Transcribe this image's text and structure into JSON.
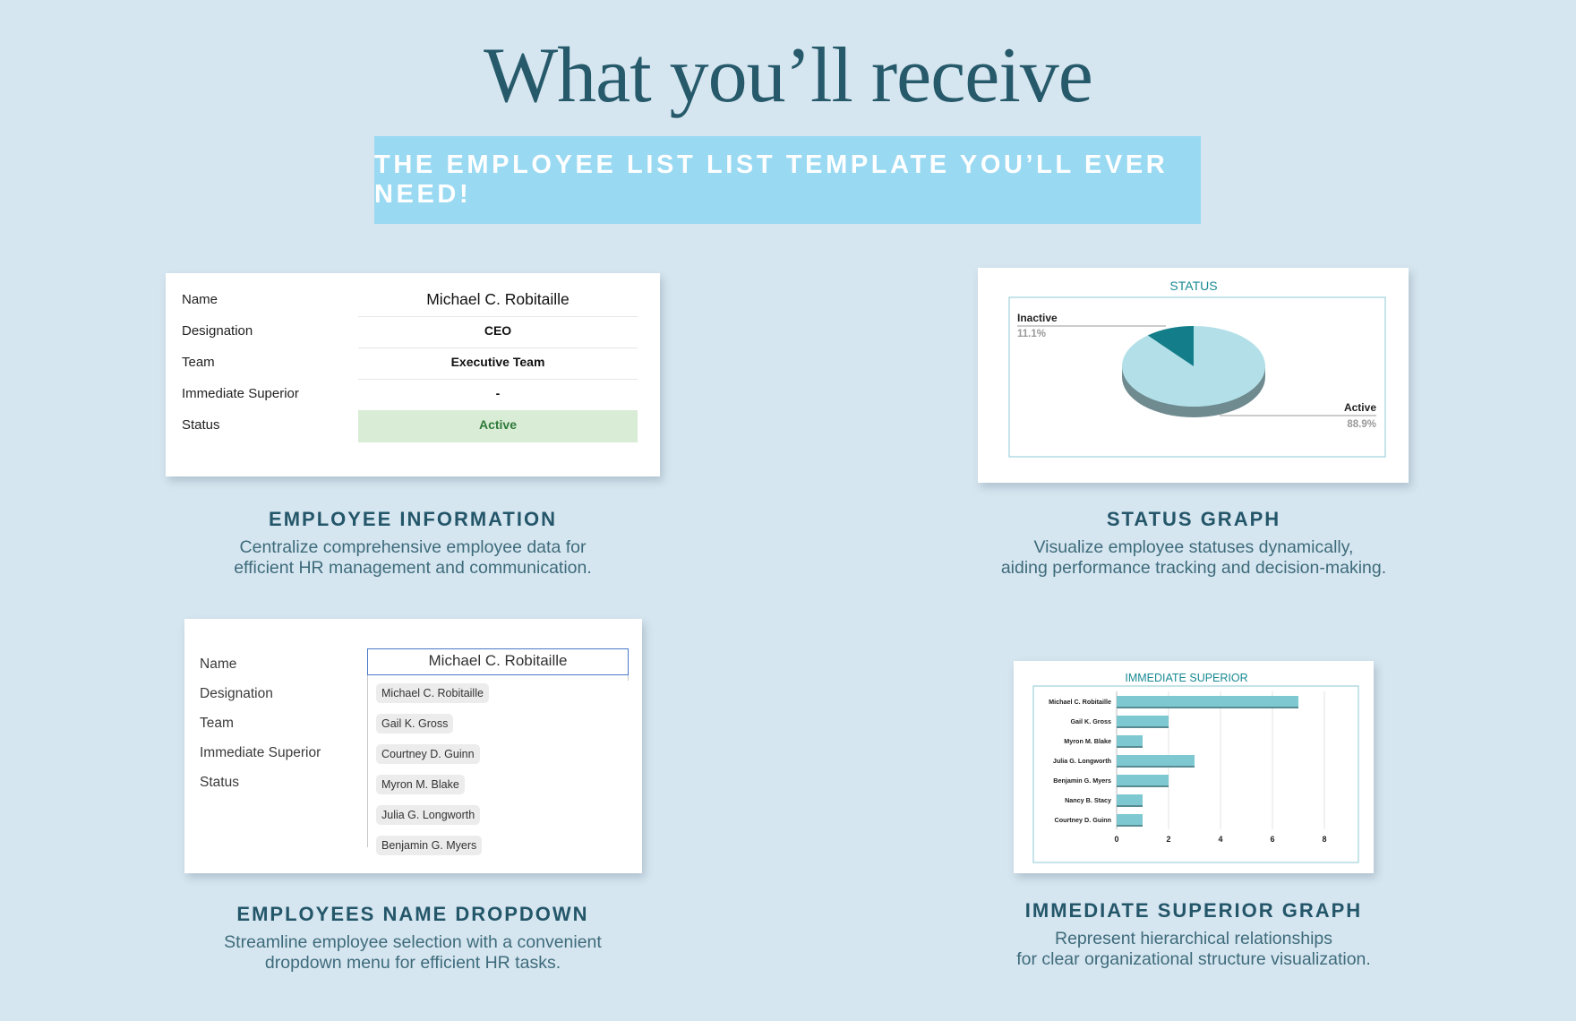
{
  "page": {
    "title": "What you’ll receive",
    "banner": "THE EMPLOYEE LIST LIST TEMPLATE YOU’LL EVER NEED!"
  },
  "employee_card": {
    "rows": [
      {
        "label": "Name",
        "value": "Michael C. Robitaille"
      },
      {
        "label": "Designation",
        "value": "CEO"
      },
      {
        "label": "Team",
        "value": "Executive Team"
      },
      {
        "label": "Immediate Superior",
        "value": "-"
      },
      {
        "label": "Status",
        "value": "Active"
      }
    ],
    "status_color": "#d9ecd6",
    "status_text_color": "#2f7a3a"
  },
  "sections": {
    "employee_info": {
      "title": "EMPLOYEE INFORMATION",
      "line1": "Centralize comprehensive employee data for",
      "line2": "efficient HR management and communication."
    },
    "status_graph": {
      "title": "STATUS GRAPH",
      "line1": "Visualize employee statuses dynamically,",
      "line2": "aiding performance tracking and decision-making."
    },
    "name_dropdown": {
      "title": "EMPLOYEES NAME DROPDOWN",
      "line1": "Streamline employee selection with a convenient",
      "line2": "dropdown menu for efficient HR tasks."
    },
    "superior_graph": {
      "title": "IMMEDIATE SUPERIOR GRAPH",
      "line1": "Represent hierarchical relationships",
      "line2": "for clear organizational structure visualization."
    }
  },
  "dropdown_card": {
    "labels": [
      "Name",
      "Designation",
      "Team",
      "Immediate Superior",
      "Status"
    ],
    "selected": "Michael C. Robitaille",
    "options": [
      "Michael C. Robitaille",
      "Gail K. Gross",
      "Courtney D. Guinn",
      "Myron M. Blake",
      "Julia G. Longworth",
      "Benjamin G. Myers"
    ]
  },
  "chart_data": [
    {
      "type": "pie",
      "title": "STATUS",
      "slices": [
        {
          "label": "Active",
          "value": 88.9,
          "value_label": "88.9%",
          "color": "#b3e0e8"
        },
        {
          "label": "Inactive",
          "value": 11.1,
          "value_label": "11.1%",
          "color": "#137e89"
        }
      ]
    },
    {
      "type": "bar",
      "orientation": "horizontal",
      "title": "IMMEDIATE SUPERIOR",
      "categories": [
        "Michael C. Robitaille",
        "Gail K. Gross",
        "Myron M. Blake",
        "Julia G. Longworth",
        "Benjamin G. Myers",
        "Nancy B. Stacy",
        "Courtney D. Guinn"
      ],
      "values": [
        7,
        2,
        1,
        3,
        2,
        1,
        1
      ],
      "xlim": [
        0,
        8
      ],
      "xticks": [
        "0",
        "2",
        "4",
        "6",
        "8"
      ],
      "color": "#7ec8d2",
      "grid": true
    }
  ]
}
